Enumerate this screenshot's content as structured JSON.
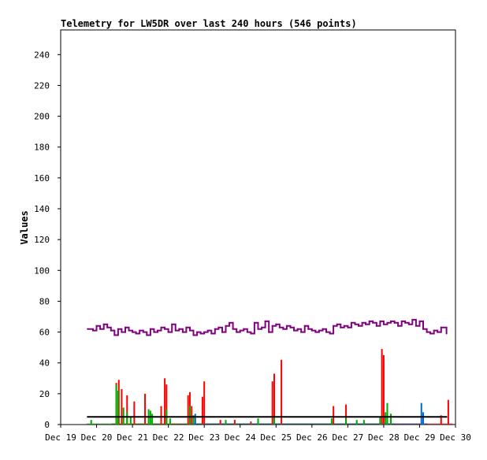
{
  "chart_data": {
    "type": "line",
    "title": "Telemetry for LW5DR over last 240 hours (546 points)",
    "xlabel": "",
    "ylabel": "Values",
    "ylim": [
      0,
      256
    ],
    "xlim": [
      "Dec 19 00:00",
      "Dec 30 00:00"
    ],
    "x_ticks": [
      "Dec 19",
      "Dec 20",
      "Dec 21",
      "Dec 22",
      "Dec 23",
      "Dec 24",
      "Dec 25",
      "Dec 26",
      "Dec 27",
      "Dec 28",
      "Dec 29",
      "Dec 30"
    ],
    "y_ticks": [
      0,
      20,
      40,
      60,
      80,
      100,
      120,
      140,
      160,
      180,
      200,
      220,
      240
    ],
    "grid": false,
    "legend": "none",
    "series": [
      {
        "color": "#800080",
        "style": "line",
        "x": [
          19.75,
          19.9,
          20.0,
          20.1,
          20.2,
          20.3,
          20.4,
          20.5,
          20.6,
          20.7,
          20.8,
          20.9,
          21.0,
          21.1,
          21.2,
          21.3,
          21.4,
          21.5,
          21.6,
          21.7,
          21.8,
          21.9,
          22.0,
          22.1,
          22.2,
          22.3,
          22.4,
          22.5,
          22.6,
          22.7,
          22.8,
          22.9,
          23.0,
          23.1,
          23.2,
          23.3,
          23.4,
          23.5,
          23.6,
          23.7,
          23.8,
          23.9,
          24.0,
          24.1,
          24.2,
          24.3,
          24.4,
          24.5,
          24.6,
          24.7,
          24.8,
          24.9,
          25.0,
          25.1,
          25.2,
          25.3,
          25.4,
          25.5,
          25.6,
          25.7,
          25.8,
          25.9,
          26.0,
          26.1,
          26.2,
          26.3,
          26.4,
          26.5,
          26.6,
          26.7,
          26.8,
          26.9,
          27.0,
          27.1,
          27.2,
          27.3,
          27.4,
          27.5,
          27.6,
          27.7,
          27.8,
          27.9,
          28.0,
          28.1,
          28.2,
          28.3,
          28.4,
          28.5,
          28.6,
          28.7,
          28.8,
          28.9,
          29.0,
          29.1,
          29.2,
          29.3,
          29.4,
          29.5,
          29.6,
          29.75
        ],
        "values": [
          62,
          61,
          64,
          62,
          65,
          63,
          61,
          58,
          62,
          60,
          63,
          61,
          60,
          59,
          61,
          60,
          58,
          62,
          60,
          61,
          63,
          62,
          60,
          65,
          61,
          62,
          60,
          63,
          61,
          58,
          60,
          59,
          60,
          61,
          59,
          62,
          63,
          60,
          64,
          66,
          62,
          60,
          61,
          62,
          60,
          59,
          66,
          62,
          63,
          67,
          60,
          64,
          65,
          63,
          62,
          64,
          63,
          61,
          62,
          60,
          64,
          62,
          61,
          60,
          61,
          62,
          60,
          59,
          64,
          65,
          63,
          64,
          63,
          66,
          65,
          64,
          66,
          65,
          67,
          66,
          64,
          67,
          65,
          66,
          67,
          66,
          64,
          67,
          66,
          65,
          68,
          64,
          67,
          62,
          60,
          59,
          61,
          60,
          63,
          59
        ]
      },
      {
        "color": "#ff0000",
        "style": "spike",
        "x": [
          20.55,
          20.62,
          20.7,
          20.85,
          21.05,
          21.35,
          21.8,
          21.9,
          21.95,
          22.55,
          22.6,
          22.65,
          22.95,
          23.0,
          23.45,
          23.85,
          24.3,
          24.9,
          24.95,
          25.15,
          26.6,
          26.95,
          27.95,
          28.0,
          29.6,
          29.8
        ],
        "values": [
          27,
          29,
          23,
          19,
          15,
          20,
          12,
          30,
          26,
          19,
          21,
          12,
          18,
          28,
          3,
          3,
          2,
          28,
          33,
          42,
          12,
          13,
          49,
          45,
          6,
          16
        ]
      },
      {
        "color": "#00aa00",
        "style": "spike",
        "x": [
          19.85,
          20.55,
          20.6,
          20.75,
          20.85,
          20.95,
          21.45,
          21.5,
          21.55,
          21.95,
          22.05,
          22.6,
          22.7,
          23.6,
          24.5,
          24.95,
          26.55,
          26.95,
          27.25,
          27.45,
          27.9,
          28.05,
          28.1,
          28.2
        ],
        "values": [
          3,
          26,
          22,
          11,
          8,
          5,
          10,
          9,
          7,
          10,
          4,
          12,
          6,
          3,
          4,
          5,
          4,
          4,
          3,
          3,
          5,
          8,
          14,
          7
        ]
      },
      {
        "color": "#0066cc",
        "style": "spike",
        "x": [
          22.75,
          29.05,
          29.1
        ],
        "values": [
          7,
          14,
          8
        ]
      },
      {
        "color": "#000000",
        "style": "line",
        "x": [
          19.75,
          29.75
        ],
        "values": [
          5,
          5
        ]
      }
    ]
  }
}
